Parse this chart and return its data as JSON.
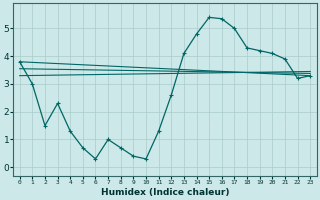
{
  "title": "",
  "xlabel": "Humidex (Indice chaleur)",
  "background_color": "#cce8e8",
  "grid_color": "#aacccc",
  "line_color": "#006666",
  "xlim": [
    -0.5,
    23.5
  ],
  "ylim": [
    -0.3,
    5.9
  ],
  "xtick_labels": [
    "0",
    "1",
    "2",
    "3",
    "4",
    "5",
    "6",
    "7",
    "8",
    "9",
    "10",
    "11",
    "12",
    "13",
    "14",
    "15",
    "16",
    "17",
    "18",
    "19",
    "20",
    "21",
    "22",
    "23"
  ],
  "xtick_vals": [
    0,
    1,
    2,
    3,
    4,
    5,
    6,
    7,
    8,
    9,
    10,
    11,
    12,
    13,
    14,
    15,
    16,
    17,
    18,
    19,
    20,
    21,
    22,
    23
  ],
  "yticks": [
    0,
    1,
    2,
    3,
    4,
    5
  ],
  "main_x": [
    0,
    1,
    2,
    3,
    4,
    5,
    6,
    7,
    8,
    9,
    10,
    11,
    12,
    13,
    14,
    15,
    16,
    17,
    18,
    19,
    20,
    21,
    22,
    23
  ],
  "main_y": [
    3.8,
    3.0,
    1.5,
    2.3,
    1.3,
    0.7,
    0.3,
    1.0,
    0.7,
    0.4,
    0.3,
    1.3,
    2.6,
    4.1,
    4.8,
    5.4,
    5.35,
    5.0,
    4.3,
    4.2,
    4.1,
    3.9,
    3.2,
    3.3
  ],
  "line1_x": [
    0,
    23
  ],
  "line1_y": [
    3.8,
    3.3
  ],
  "line2_x": [
    0,
    23
  ],
  "line2_y": [
    3.55,
    3.38
  ],
  "line3_x": [
    0,
    23
  ],
  "line3_y": [
    3.3,
    3.45
  ]
}
